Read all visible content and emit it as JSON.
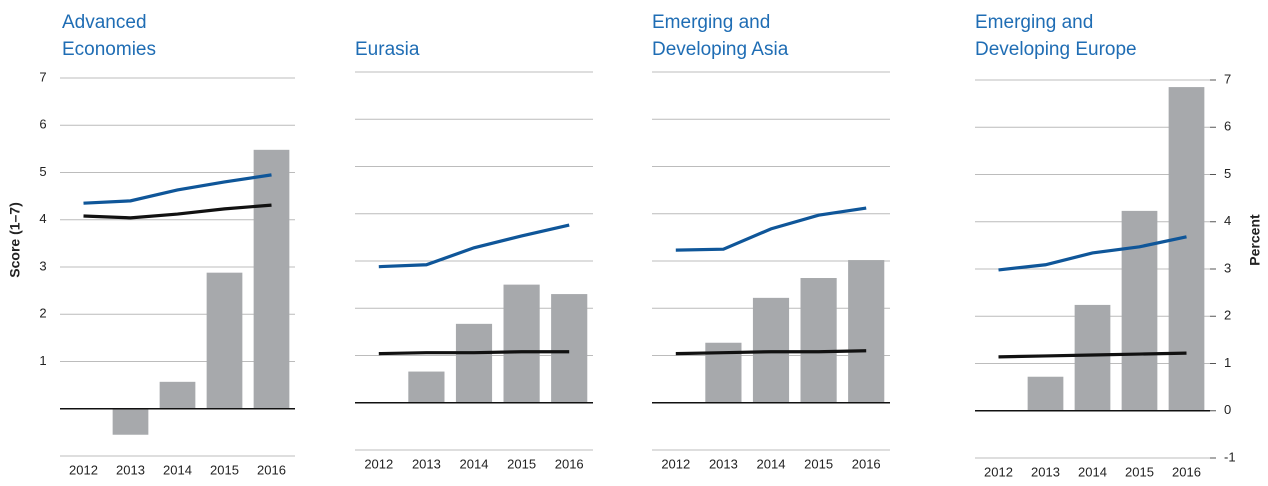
{
  "chart_data": [
    {
      "type": "combo",
      "title": [
        "Advanced",
        "Economies"
      ],
      "ylabel": "Score (1–7)",
      "categories": [
        "2012",
        "2013",
        "2014",
        "2015",
        "2016"
      ],
      "series": [
        {
          "type": "bar",
          "color": "#a7a9ac",
          "values": [
            0,
            -0.55,
            0.57,
            2.88,
            5.48
          ]
        },
        {
          "type": "line",
          "color": "#0f5699",
          "values": [
            4.35,
            4.4,
            4.63,
            4.8,
            4.95
          ]
        },
        {
          "type": "line",
          "color": "#111111",
          "values": [
            4.08,
            4.04,
            4.12,
            4.23,
            4.31
          ]
        }
      ],
      "ylim": [
        -1,
        7
      ],
      "yticks": [
        1,
        2,
        3,
        4,
        5,
        6,
        7
      ],
      "show_tick_labels": true,
      "grid": true
    },
    {
      "type": "combo",
      "title": [
        "Eurasia"
      ],
      "categories": [
        "2012",
        "2013",
        "2014",
        "2015",
        "2016"
      ],
      "series": [
        {
          "type": "bar",
          "color": "#a7a9ac",
          "values": [
            0,
            0.66,
            1.67,
            2.5,
            2.3
          ]
        },
        {
          "type": "line",
          "color": "#0f5699",
          "values": [
            2.88,
            2.92,
            3.28,
            3.53,
            3.76
          ]
        },
        {
          "type": "line",
          "color": "#111111",
          "values": [
            1.04,
            1.06,
            1.06,
            1.08,
            1.08
          ]
        }
      ],
      "ylim": [
        -1,
        7
      ],
      "yticks": [
        1,
        2,
        3,
        4,
        5,
        6,
        7
      ],
      "show_tick_labels": false,
      "grid": true
    },
    {
      "type": "combo",
      "title": [
        "Emerging and",
        "Developing Asia"
      ],
      "categories": [
        "2012",
        "2013",
        "2014",
        "2015",
        "2016"
      ],
      "series": [
        {
          "type": "bar",
          "color": "#a7a9ac",
          "values": [
            0,
            1.27,
            2.22,
            2.64,
            3.02
          ]
        },
        {
          "type": "line",
          "color": "#0f5699",
          "values": [
            3.23,
            3.25,
            3.68,
            3.97,
            4.12
          ]
        },
        {
          "type": "line",
          "color": "#111111",
          "values": [
            1.04,
            1.06,
            1.08,
            1.08,
            1.1
          ]
        }
      ],
      "ylim": [
        -1,
        7
      ],
      "yticks": [
        1,
        2,
        3,
        4,
        5,
        6,
        7
      ],
      "show_tick_labels": false,
      "grid": true
    },
    {
      "type": "combo",
      "title": [
        "Emerging and",
        "Developing Europe"
      ],
      "y2label": "Percent",
      "categories": [
        "2012",
        "2013",
        "2014",
        "2015",
        "2016"
      ],
      "series": [
        {
          "type": "bar",
          "color": "#a7a9ac",
          "values": [
            0,
            0.72,
            2.24,
            4.23,
            6.85
          ]
        },
        {
          "type": "line",
          "color": "#0f5699",
          "values": [
            2.98,
            3.09,
            3.34,
            3.47,
            3.68
          ]
        },
        {
          "type": "line",
          "color": "#111111",
          "values": [
            1.14,
            1.16,
            1.18,
            1.2,
            1.22
          ]
        }
      ],
      "ylim": [
        -1,
        7
      ],
      "yticks": [
        -1,
        0,
        1,
        2,
        3,
        4,
        5,
        6,
        7
      ],
      "show_tick_labels": true,
      "tick_side": "right",
      "grid": true
    }
  ]
}
